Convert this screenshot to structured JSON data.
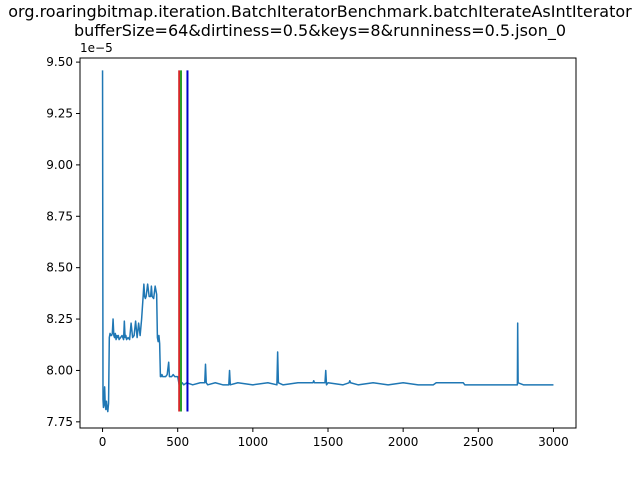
{
  "chart_data": {
    "type": "line",
    "title_line1": "org.roaringbitmap.iteration.BatchIteratorBenchmark.batchIterateAsIntIterator",
    "title_line2": "bufferSize=64&dirtiness=0.5&keys=8&runniness=0.5.json_0",
    "y_offset_label": "1e−5",
    "xlim": [
      -150,
      3150
    ],
    "ylim": [
      7.72,
      9.52
    ],
    "x_ticks": [
      0,
      500,
      1000,
      1500,
      2000,
      2500,
      3000
    ],
    "x_tick_labels": [
      "0",
      "500",
      "1000",
      "1500",
      "2000",
      "2500",
      "3000"
    ],
    "y_ticks": [
      7.75,
      8.0,
      8.25,
      8.5,
      8.75,
      9.0,
      9.25,
      9.5
    ],
    "y_tick_labels": [
      "7.75",
      "8.00",
      "8.25",
      "8.50",
      "8.75",
      "9.00",
      "9.25",
      "9.50"
    ],
    "colors": {
      "series": "#1f77b4",
      "vline_red": "#d62728",
      "vline_green": "#2ca02c",
      "vline_blue": "#0000cc"
    },
    "vertical_lines": [
      {
        "x": 510,
        "ymin": 7.8,
        "ymax": 9.46,
        "color": "#d62728"
      },
      {
        "x": 522,
        "ymin": 7.8,
        "ymax": 9.46,
        "color": "#2ca02c"
      },
      {
        "x": 565,
        "ymin": 7.8,
        "ymax": 9.46,
        "color": "#0000cc"
      }
    ],
    "series": [
      {
        "x": [
          0,
          3,
          6,
          10,
          14,
          18,
          22,
          26,
          30,
          35,
          40,
          45,
          50,
          55,
          60,
          65,
          70,
          75,
          80,
          85,
          90,
          95,
          100,
          105,
          110,
          120,
          130,
          140,
          145,
          150,
          155,
          160,
          170,
          180,
          190,
          200,
          210,
          220,
          230,
          240,
          250,
          260,
          270,
          275,
          280,
          285,
          290,
          300,
          310,
          320,
          325,
          330,
          340,
          350,
          360,
          365,
          370,
          375,
          380,
          385,
          390,
          395,
          400,
          410,
          420,
          430,
          440,
          445,
          450,
          460,
          470,
          480,
          490,
          500,
          505,
          510,
          515,
          520,
          530,
          540,
          560,
          600,
          650,
          680,
          685,
          690,
          700,
          750,
          800,
          840,
          845,
          850,
          900,
          1000,
          1100,
          1160,
          1165,
          1170,
          1200,
          1300,
          1400,
          1405,
          1410,
          1480,
          1485,
          1490,
          1500,
          1600,
          1640,
          1645,
          1650,
          1700,
          1800,
          1900,
          2000,
          2100,
          2200,
          2220,
          2300,
          2400,
          2410,
          2500,
          2600,
          2700,
          2760,
          2762,
          2765,
          2800,
          2900,
          3000
        ],
        "y": [
          9.46,
          7.86,
          7.82,
          7.84,
          7.92,
          7.83,
          7.81,
          7.85,
          7.82,
          7.8,
          7.84,
          8.16,
          8.18,
          8.17,
          8.17,
          8.18,
          8.25,
          8.17,
          8.16,
          8.18,
          8.15,
          8.17,
          8.16,
          8.17,
          8.15,
          8.16,
          8.17,
          8.15,
          8.24,
          8.16,
          8.17,
          8.15,
          8.16,
          8.15,
          8.23,
          8.16,
          8.17,
          8.24,
          8.16,
          8.23,
          8.17,
          8.25,
          8.36,
          8.42,
          8.36,
          8.35,
          8.36,
          8.42,
          8.36,
          8.36,
          8.41,
          8.36,
          8.35,
          8.41,
          8.37,
          8.16,
          8.14,
          8.17,
          8.13,
          7.97,
          7.97,
          7.98,
          7.97,
          7.97,
          7.97,
          7.98,
          8.04,
          7.97,
          7.97,
          7.97,
          7.98,
          7.97,
          7.97,
          7.97,
          7.95,
          7.93,
          7.94,
          7.93,
          7.94,
          7.93,
          7.94,
          7.93,
          7.94,
          7.94,
          8.03,
          7.94,
          7.93,
          7.94,
          7.93,
          7.93,
          8.0,
          7.93,
          7.94,
          7.93,
          7.94,
          7.93,
          8.09,
          7.94,
          7.93,
          7.94,
          7.94,
          7.95,
          7.94,
          7.94,
          8.0,
          7.93,
          7.94,
          7.93,
          7.94,
          7.95,
          7.94,
          7.93,
          7.94,
          7.93,
          7.94,
          7.93,
          7.93,
          7.94,
          7.94,
          7.94,
          7.93,
          7.93,
          7.93,
          7.93,
          7.93,
          8.23,
          7.94,
          7.93,
          7.93,
          7.93
        ]
      }
    ]
  }
}
